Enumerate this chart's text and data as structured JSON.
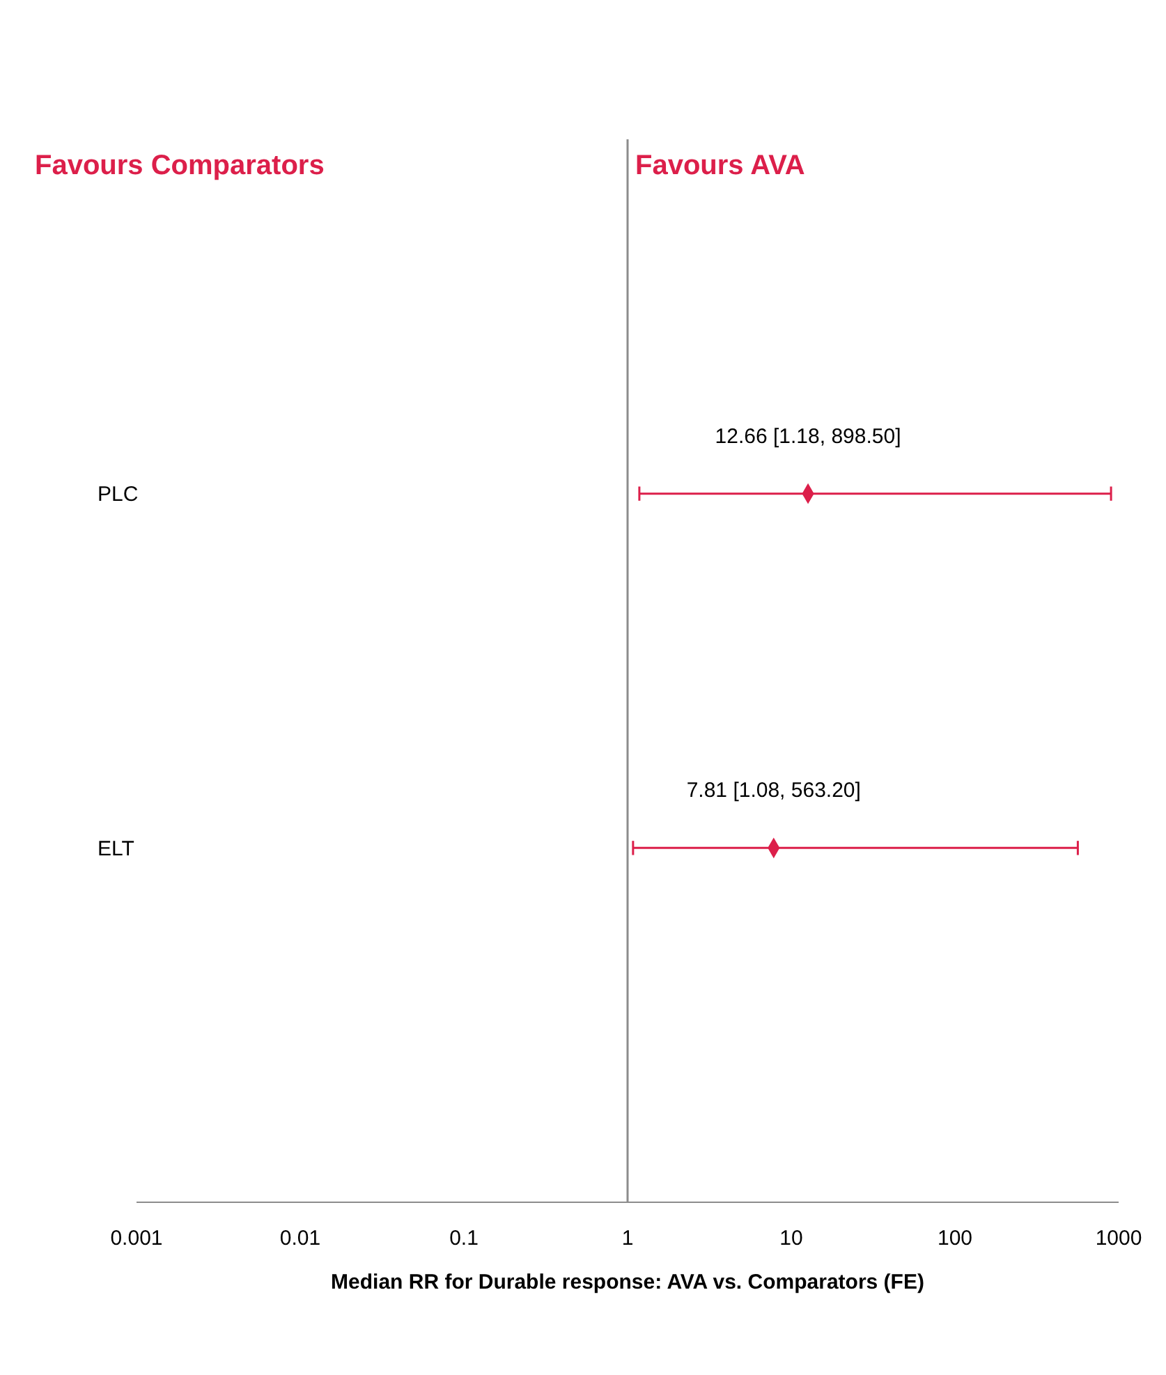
{
  "chart_data": {
    "type": "scatter",
    "orientation": "horizontal",
    "xlabel": "Median RR for Durable response: AVA vs. Comparators (FE)",
    "categories": [
      "PLC",
      "ELT"
    ],
    "values": [
      12.66,
      7.81
    ],
    "errors": [
      [
        1.18,
        898.5
      ],
      [
        1.08,
        563.2
      ]
    ],
    "value_labels": [
      "12.66 [1.18, 898.50]",
      "7.81 [1.08, 563.20]"
    ],
    "color": "#dc1f4a",
    "marker": "diamond",
    "log": "x",
    "grid": false,
    "xlim": [
      0.001,
      1000
    ],
    "xticks": [
      0.001,
      0.01,
      0.1,
      1,
      10,
      100,
      1000
    ],
    "ref_lines": [
      {
        "axis": "x",
        "value": 1,
        "color": "#8c8c8c"
      }
    ],
    "annotations": [
      "Favours Comparators",
      "Favours AVA"
    ]
  }
}
